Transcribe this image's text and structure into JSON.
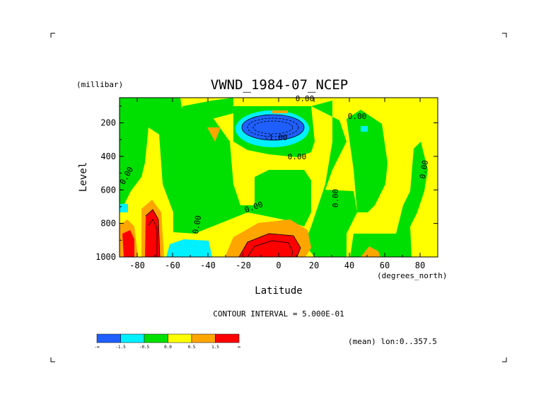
{
  "chart_data": {
    "type": "heatmap",
    "title": "VWND_1984-07_NCEP",
    "xlabel": "Latitude",
    "ylabel": "Level",
    "x_units": "(degrees_north)",
    "y_units": "(millibar)",
    "xlim": [
      -90,
      90
    ],
    "ylim": [
      1000,
      50
    ],
    "x_ticks": [
      "-80",
      "-60",
      "-40",
      "-20",
      "0",
      "20",
      "40",
      "60",
      "80"
    ],
    "y_ticks": [
      "200",
      "400",
      "600",
      "800",
      "1000"
    ],
    "contour_interval": "CONTOUR INTERVAL = 5.000E-01",
    "mean_note": "(mean) lon:0..357.5",
    "contour_labels": [
      "0.00",
      "0.00",
      "0.00",
      "0.00",
      "0.00",
      "0.00",
      "0.00",
      "0.00",
      "-1.00"
    ],
    "legend": {
      "colors": [
        "#1f5fff",
        "#00f0ff",
        "#00e000",
        "#ffff00",
        "#ffa500",
        "#ff0000"
      ],
      "labels": [
        "-∞",
        "-1.5",
        "-0.5",
        "0.0",
        "0.5",
        "1.5",
        "∞"
      ]
    }
  }
}
